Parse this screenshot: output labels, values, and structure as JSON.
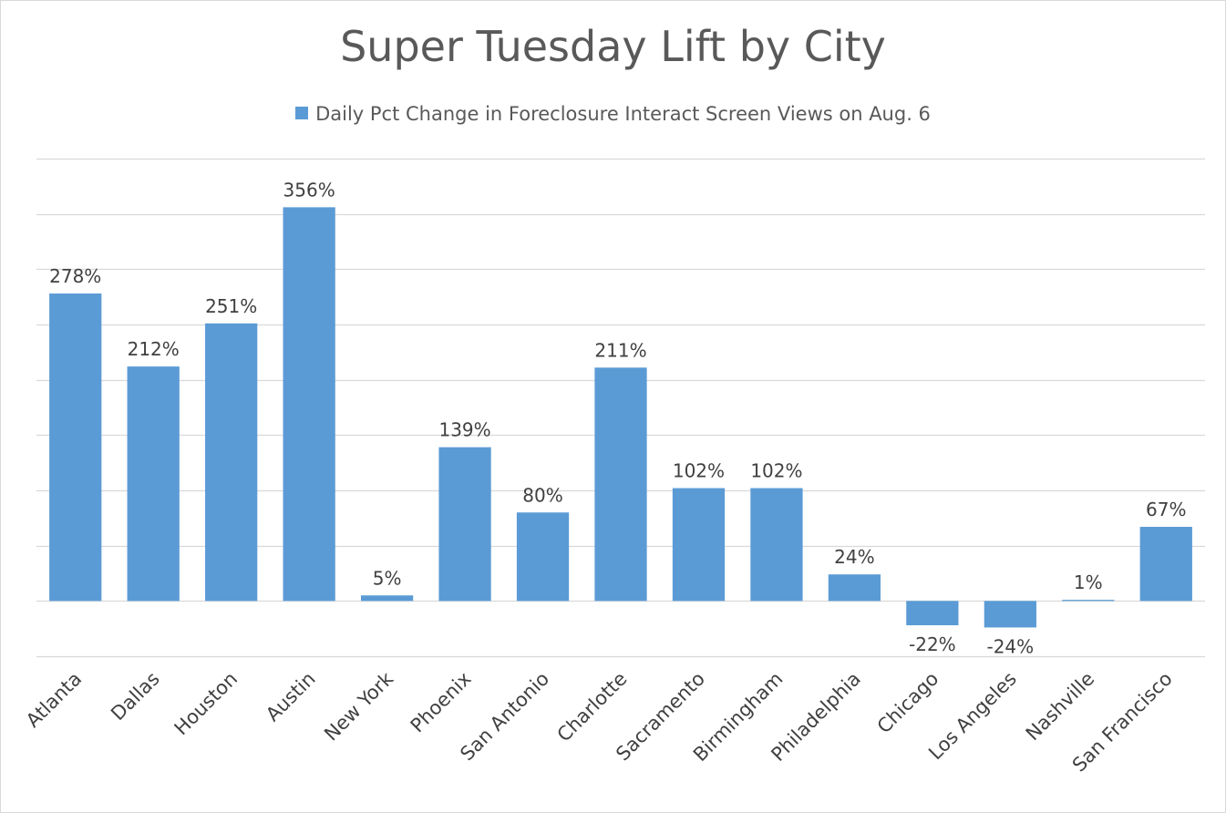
{
  "chart_data": {
    "type": "bar",
    "title": "Super Tuesday Lift by City",
    "legend_position": "top",
    "grid": true,
    "series": [
      {
        "name": "Daily Pct Change in Foreclosure Interact Screen Views on Aug. 6",
        "color": "#5b9bd5",
        "values": [
          278,
          212,
          251,
          356,
          5,
          139,
          80,
          211,
          102,
          102,
          24,
          -22,
          -24,
          1,
          67
        ],
        "labels": [
          "278%",
          "212%",
          "251%",
          "356%",
          "5%",
          "139%",
          "80%",
          "211%",
          "102%",
          "102%",
          "24%",
          "-22%",
          "-24%",
          "1%",
          "67%"
        ]
      }
    ],
    "categories": [
      "Atlanta",
      "Dallas",
      "Houston",
      "Austin",
      "New York",
      "Phoenix",
      "San Antonio",
      "Charlotte",
      "Sacramento",
      "Birmingham",
      "Philadelphia",
      "Chicago",
      "Los Angeles",
      "Nashville",
      "San Francisco"
    ],
    "xlabel": "",
    "ylabel": "",
    "ylim": [
      -50,
      400
    ],
    "ytick_step": 50
  }
}
